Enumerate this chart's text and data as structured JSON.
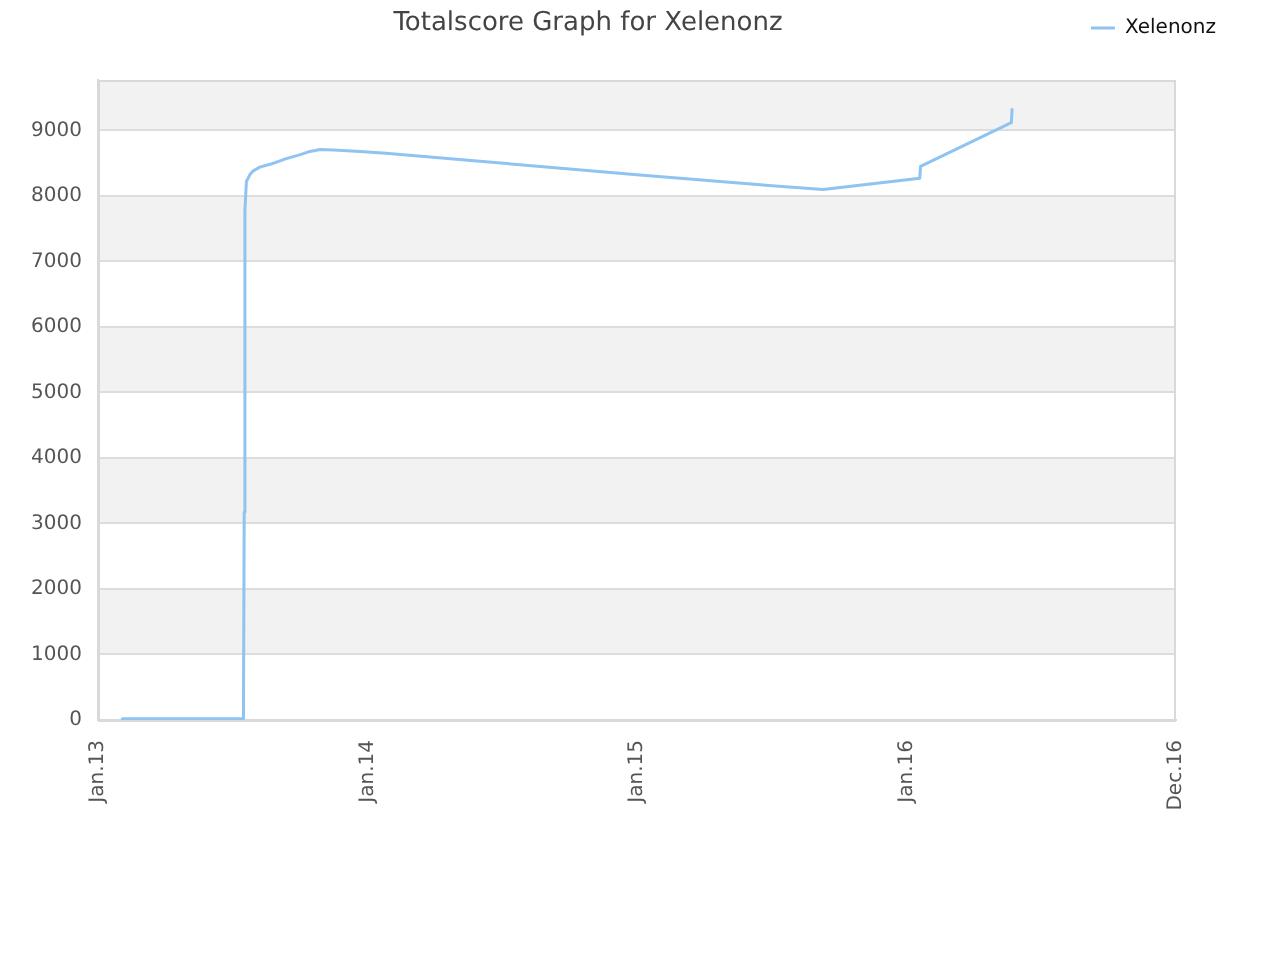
{
  "chart_data": {
    "type": "line",
    "title": "Totalscore Graph for Xelenonz",
    "x": [
      "2013-02-03",
      "2013-07-17",
      "2013-07-18",
      "2013-07-19",
      "2013-07-21",
      "2013-07-26",
      "2013-07-30",
      "2013-08-08",
      "2013-08-27",
      "2013-09-13",
      "2013-10-02",
      "2013-10-15",
      "2013-10-29",
      "2013-11-16",
      "2013-12-22",
      "2014-01-26",
      "2014-06-02",
      "2015-01-05",
      "2015-06-17",
      "2015-09-10",
      "2016-01-19",
      "2016-01-20",
      "2016-05-22",
      "2016-05-23"
    ],
    "series": [
      {
        "name": "Xelenonz",
        "color": "#8ec3f2",
        "values": [
          20,
          20,
          3170,
          7780,
          8220,
          8330,
          8380,
          8440,
          8500,
          8570,
          8630,
          8680,
          8710,
          8700,
          8680,
          8650,
          8530,
          8320,
          8170,
          8100,
          8270,
          8450,
          9120,
          9320
        ]
      }
    ],
    "xlim": [
      "2013-01-01",
      "2016-12-31"
    ],
    "xticks": [
      {
        "value": "2013-01-01",
        "label": "Jan.13"
      },
      {
        "value": "2014-01-01",
        "label": "Jan.14"
      },
      {
        "value": "2015-01-01",
        "label": "Jan.15"
      },
      {
        "value": "2016-01-01",
        "label": "Jan.16"
      },
      {
        "value": "2016-12-31",
        "label": "Dec.16"
      }
    ],
    "ylim": [
      0,
      9770
    ],
    "yticks": [
      0,
      1000,
      2000,
      3000,
      4000,
      5000,
      6000,
      7000,
      8000,
      9000
    ],
    "grid": "y",
    "legend": "top right",
    "marker": "none",
    "line_style": "solid"
  }
}
